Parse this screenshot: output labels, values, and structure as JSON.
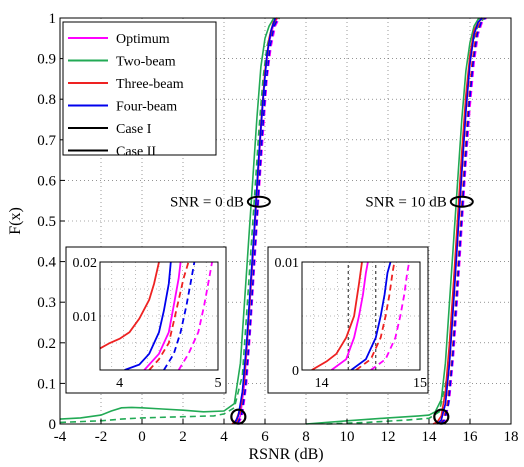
{
  "chart_data": {
    "type": "line",
    "xlabel": "RSNR (dB)",
    "ylabel": "F(x)",
    "xlim": [
      -4,
      18
    ],
    "ylim": [
      0,
      1
    ],
    "xticks": [
      -4,
      -2,
      0,
      2,
      4,
      6,
      8,
      10,
      12,
      14,
      16,
      18
    ],
    "yticks": [
      0,
      0.1,
      0.2,
      0.3,
      0.4,
      0.5,
      0.6,
      0.7,
      0.8,
      0.9,
      1
    ],
    "grid": true,
    "legend_position": "top-left",
    "legend": [
      {
        "label": "Optimum",
        "color": "#ff00ff",
        "dash": "solid"
      },
      {
        "label": "Two-beam",
        "color": "#22aa55",
        "dash": "solid"
      },
      {
        "label": "Three-beam",
        "color": "#ee2222",
        "dash": "solid"
      },
      {
        "label": "Four-beam",
        "color": "#0000ee",
        "dash": "solid"
      },
      {
        "label": "Case I",
        "color": "#000000",
        "dash": "solid"
      },
      {
        "label": "Case II",
        "color": "#000000",
        "dash": "solid"
      }
    ],
    "annotations": [
      {
        "text": "SNR = 0 dB",
        "x": 5.7,
        "y": 0.55
      },
      {
        "text": "SNR = 10 dB",
        "x": 15.6,
        "y": 0.55
      }
    ],
    "series": [
      {
        "name": "Two-beam",
        "color": "#22aa55",
        "dash": "solid",
        "x": [
          -4,
          -3,
          -2,
          -1.5,
          -1,
          -0.5,
          0,
          1,
          2,
          3,
          4,
          4.5,
          4.8,
          5,
          5.2,
          5.4,
          5.6,
          5.8,
          6,
          6.2,
          6.4,
          6.6
        ],
        "y": [
          0.012,
          0.015,
          0.022,
          0.032,
          0.04,
          0.041,
          0.04,
          0.037,
          0.034,
          0.03,
          0.032,
          0.05,
          0.15,
          0.3,
          0.45,
          0.6,
          0.75,
          0.88,
          0.95,
          0.98,
          0.997,
          1
        ]
      },
      {
        "name": "Two-beam",
        "color": "#22aa55",
        "dash": "dashed",
        "x": [
          -4,
          -2,
          -1,
          0,
          2,
          3.5,
          4,
          4.5,
          4.9,
          5.1,
          5.3,
          5.5,
          5.7,
          5.9,
          6.1,
          6.3,
          6.5,
          6.7
        ],
        "y": [
          0.004,
          0.008,
          0.012,
          0.015,
          0.018,
          0.02,
          0.025,
          0.04,
          0.12,
          0.27,
          0.42,
          0.57,
          0.72,
          0.85,
          0.93,
          0.97,
          0.99,
          1
        ]
      },
      {
        "name": "Optimum",
        "color": "#ff00ff",
        "dash": "solid",
        "x": [
          4.6,
          4.8,
          5,
          5.2,
          5.4,
          5.6,
          5.8,
          6,
          6.2,
          6.4,
          6.6
        ],
        "y": [
          0,
          0.02,
          0.1,
          0.25,
          0.4,
          0.56,
          0.72,
          0.86,
          0.94,
          0.98,
          1
        ]
      },
      {
        "name": "Optimum",
        "color": "#ff00ff",
        "dash": "dashed",
        "x": [
          4.7,
          4.9,
          5.1,
          5.3,
          5.5,
          5.7,
          5.9,
          6.1,
          6.3,
          6.5,
          6.7
        ],
        "y": [
          0,
          0.02,
          0.1,
          0.24,
          0.4,
          0.56,
          0.71,
          0.85,
          0.93,
          0.98,
          1
        ]
      },
      {
        "name": "Three-beam",
        "color": "#ee2222",
        "dash": "solid",
        "x": [
          4.4,
          4.6,
          4.8,
          5,
          5.2,
          5.4,
          5.6,
          5.8,
          6,
          6.2,
          6.4,
          6.6
        ],
        "y": [
          0,
          0.01,
          0.04,
          0.12,
          0.26,
          0.42,
          0.58,
          0.74,
          0.87,
          0.95,
          0.99,
          1
        ]
      },
      {
        "name": "Three-beam",
        "color": "#ee2222",
        "dash": "dashed",
        "x": [
          4.6,
          4.8,
          5,
          5.2,
          5.4,
          5.6,
          5.8,
          6,
          6.2,
          6.4,
          6.6
        ],
        "y": [
          0,
          0.03,
          0.11,
          0.25,
          0.41,
          0.57,
          0.72,
          0.86,
          0.94,
          0.98,
          1
        ]
      },
      {
        "name": "Four-beam",
        "color": "#0000ee",
        "dash": "solid",
        "x": [
          4.5,
          4.7,
          4.9,
          5.1,
          5.3,
          5.5,
          5.7,
          5.9,
          6.1,
          6.3,
          6.5
        ],
        "y": [
          0,
          0.02,
          0.08,
          0.2,
          0.35,
          0.5,
          0.66,
          0.8,
          0.91,
          0.97,
          1
        ]
      },
      {
        "name": "Four-beam",
        "color": "#0000ee",
        "dash": "dashed",
        "x": [
          4.65,
          4.85,
          5.05,
          5.25,
          5.45,
          5.65,
          5.85,
          6.05,
          6.25,
          6.45,
          6.65
        ],
        "y": [
          0,
          0.02,
          0.09,
          0.22,
          0.38,
          0.54,
          0.7,
          0.84,
          0.93,
          0.98,
          1
        ]
      },
      {
        "name": "Two-beam",
        "color": "#22aa55",
        "dash": "solid",
        "x": [
          8,
          10,
          12,
          13.5,
          14,
          14.3,
          14.6,
          14.8,
          15,
          15.2,
          15.4,
          15.6,
          15.8,
          16,
          16.2,
          16.4,
          16.6
        ],
        "y": [
          0,
          0.008,
          0.015,
          0.02,
          0.022,
          0.03,
          0.06,
          0.15,
          0.3,
          0.45,
          0.6,
          0.75,
          0.87,
          0.94,
          0.98,
          0.997,
          1
        ]
      },
      {
        "name": "Two-beam",
        "color": "#22aa55",
        "dash": "dashed",
        "x": [
          9,
          11,
          13,
          14,
          14.5,
          14.9,
          15.1,
          15.3,
          15.5,
          15.7,
          15.9,
          16.1,
          16.3,
          16.5,
          16.7
        ],
        "y": [
          0,
          0.004,
          0.01,
          0.014,
          0.03,
          0.12,
          0.27,
          0.42,
          0.57,
          0.72,
          0.85,
          0.93,
          0.97,
          0.99,
          1
        ]
      },
      {
        "name": "Optimum",
        "color": "#ff00ff",
        "dash": "solid",
        "x": [
          14.4,
          14.6,
          14.8,
          15,
          15.2,
          15.4,
          15.6,
          15.8,
          16,
          16.2,
          16.4,
          16.6
        ],
        "y": [
          0,
          0.01,
          0.05,
          0.15,
          0.3,
          0.46,
          0.62,
          0.77,
          0.89,
          0.96,
          0.99,
          1
        ]
      },
      {
        "name": "Optimum",
        "color": "#ff00ff",
        "dash": "dashed",
        "x": [
          14.6,
          14.8,
          15,
          15.2,
          15.4,
          15.6,
          15.8,
          16,
          16.2,
          16.4,
          16.6,
          16.8
        ],
        "y": [
          0,
          0.01,
          0.06,
          0.17,
          0.32,
          0.48,
          0.64,
          0.78,
          0.89,
          0.96,
          0.99,
          1
        ]
      },
      {
        "name": "Three-beam",
        "color": "#ee2222",
        "dash": "solid",
        "x": [
          14.2,
          14.4,
          14.6,
          14.8,
          15,
          15.2,
          15.4,
          15.6,
          15.8,
          16,
          16.2,
          16.4,
          16.6
        ],
        "y": [
          0,
          0.005,
          0.02,
          0.08,
          0.2,
          0.35,
          0.51,
          0.67,
          0.81,
          0.91,
          0.97,
          0.99,
          1
        ]
      },
      {
        "name": "Three-beam",
        "color": "#ee2222",
        "dash": "dashed",
        "x": [
          14.5,
          14.7,
          14.9,
          15.1,
          15.3,
          15.5,
          15.7,
          15.9,
          16.1,
          16.3,
          16.5,
          16.7
        ],
        "y": [
          0,
          0.01,
          0.05,
          0.15,
          0.3,
          0.46,
          0.62,
          0.77,
          0.89,
          0.96,
          0.99,
          1
        ]
      },
      {
        "name": "Four-beam",
        "color": "#0000ee",
        "dash": "solid",
        "x": [
          14.4,
          14.6,
          14.8,
          15,
          15.2,
          15.4,
          15.6,
          15.8,
          16,
          16.2,
          16.4,
          16.6
        ],
        "y": [
          0,
          0.01,
          0.05,
          0.15,
          0.3,
          0.46,
          0.62,
          0.77,
          0.89,
          0.96,
          0.99,
          1
        ]
      },
      {
        "name": "Four-beam",
        "color": "#0000ee",
        "dash": "dashed",
        "x": [
          14.55,
          14.75,
          14.95,
          15.15,
          15.35,
          15.55,
          15.75,
          15.95,
          16.15,
          16.35,
          16.55,
          16.75
        ],
        "y": [
          0,
          0.01,
          0.05,
          0.16,
          0.31,
          0.47,
          0.63,
          0.78,
          0.89,
          0.96,
          0.99,
          1
        ]
      }
    ],
    "insets": [
      {
        "xlim": [
          3.8,
          5
        ],
        "ylim": [
          0,
          0.02
        ],
        "xticks": [
          4,
          5
        ],
        "yticks": [
          0,
          0.01,
          0.02
        ],
        "ytick_labels": [
          "",
          "0.01",
          "0.02"
        ],
        "series": [
          {
            "color": "#ee2222",
            "dash": "solid",
            "x": [
              3.8,
              3.9,
              4,
              4.1,
              4.2,
              4.3,
              4.35,
              4.4
            ],
            "y": [
              0.004,
              0.005,
              0.0058,
              0.007,
              0.0095,
              0.013,
              0.016,
              0.02
            ]
          },
          {
            "color": "#0000ee",
            "dash": "solid",
            "x": [
              4.05,
              4.2,
              4.3,
              4.4,
              4.45,
              4.5,
              4.52
            ],
            "y": [
              0,
              0.001,
              0.003,
              0.007,
              0.011,
              0.016,
              0.02
            ]
          },
          {
            "color": "#ee2222",
            "dash": "dashed",
            "x": [
              4.3,
              4.4,
              4.5,
              4.55,
              4.6,
              4.65,
              4.7
            ],
            "y": [
              0,
              0.002,
              0.005,
              0.009,
              0.013,
              0.017,
              0.02
            ]
          },
          {
            "color": "#ff00ff",
            "dash": "solid",
            "x": [
              4.25,
              4.4,
              4.5,
              4.55,
              4.6,
              4.62
            ],
            "y": [
              0,
              0.003,
              0.007,
              0.012,
              0.017,
              0.02
            ]
          },
          {
            "color": "#0000ee",
            "dash": "dashed",
            "x": [
              4.45,
              4.55,
              4.62,
              4.68,
              4.72,
              4.76
            ],
            "y": [
              0,
              0.003,
              0.007,
              0.012,
              0.016,
              0.02
            ]
          },
          {
            "color": "#ff00ff",
            "dash": "dashed",
            "x": [
              4.6,
              4.7,
              4.8,
              4.86,
              4.9,
              4.94
            ],
            "y": [
              0,
              0.003,
              0.007,
              0.012,
              0.016,
              0.02
            ]
          }
        ]
      },
      {
        "xlim": [
          13.8,
          15
        ],
        "ylim": [
          0,
          0.01
        ],
        "xticks": [
          14,
          15
        ],
        "yticks": [
          0,
          0.01
        ],
        "ytick_labels": [
          "0",
          "0.01"
        ],
        "series": [
          {
            "color": "#000000",
            "dash": "dashed",
            "x": [
              14.27,
              14.27
            ],
            "y": [
              0,
              0.01
            ]
          },
          {
            "color": "#000000",
            "dash": "dashed",
            "x": [
              14.55,
              14.55
            ],
            "y": [
              0,
              0.01
            ]
          },
          {
            "color": "#ee2222",
            "dash": "solid",
            "x": [
              13.9,
              14.05,
              14.15,
              14.25,
              14.33,
              14.38,
              14.41
            ],
            "y": [
              0,
              0.0008,
              0.0015,
              0.003,
              0.005,
              0.008,
              0.01
            ]
          },
          {
            "color": "#ff00ff",
            "dash": "solid",
            "x": [
              14.1,
              14.25,
              14.33,
              14.38,
              14.42,
              14.45,
              14.47
            ],
            "y": [
              0,
              0.001,
              0.003,
              0.005,
              0.007,
              0.009,
              0.01
            ]
          },
          {
            "color": "#0000ee",
            "dash": "solid",
            "x": [
              14.3,
              14.45,
              14.55,
              14.6,
              14.64,
              14.67,
              14.7
            ],
            "y": [
              0,
              0.001,
              0.003,
              0.005,
              0.007,
              0.009,
              0.01
            ]
          },
          {
            "color": "#ee2222",
            "dash": "dashed",
            "x": [
              14.35,
              14.5,
              14.6,
              14.65,
              14.69,
              14.72,
              14.74
            ],
            "y": [
              0,
              0.001,
              0.003,
              0.005,
              0.007,
              0.009,
              0.01
            ]
          },
          {
            "color": "#ff00ff",
            "dash": "dashed",
            "x": [
              14.5,
              14.65,
              14.75,
              14.8,
              14.84,
              14.87,
              14.89
            ],
            "y": [
              0,
              0.001,
              0.003,
              0.005,
              0.007,
              0.009,
              0.01
            ]
          }
        ]
      }
    ]
  }
}
